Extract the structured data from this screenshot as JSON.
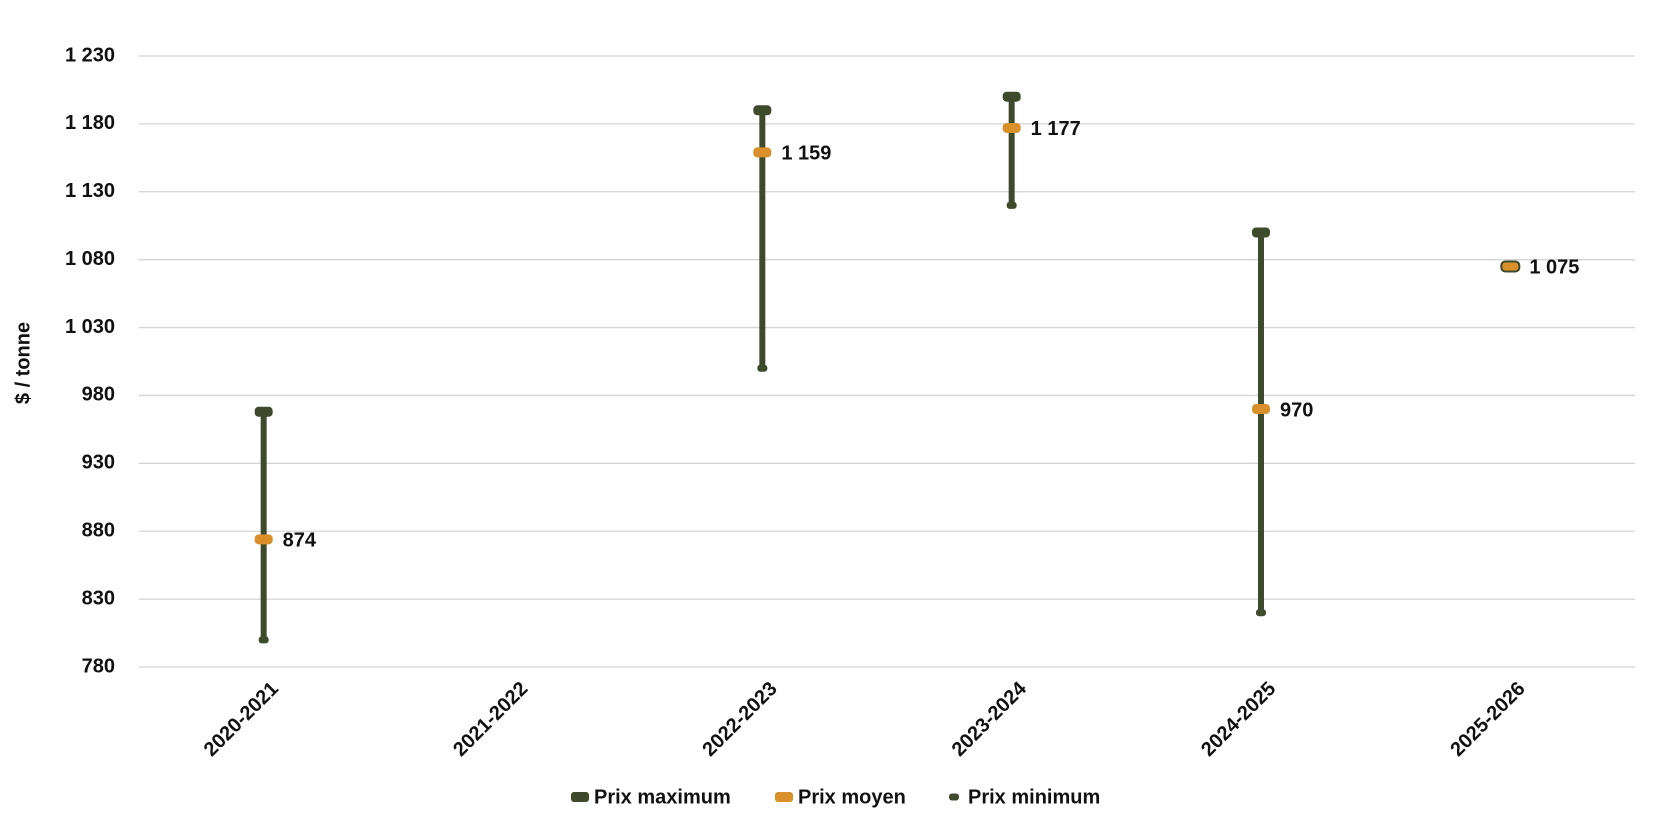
{
  "chart_data": {
    "type": "range",
    "y_label": "$ / tonne",
    "categories": [
      "2020-2021",
      "2021-2022",
      "2022-2023",
      "2023-2024",
      "2024-2025",
      "2025-2026"
    ],
    "series": [
      {
        "name": "Prix maximum",
        "color": "#3d4a2c",
        "values": [
          968,
          null,
          1190,
          1200,
          1100,
          1075
        ]
      },
      {
        "name": "Prix moyen",
        "color": "#d9902b",
        "values": [
          874,
          null,
          1159,
          1177,
          970,
          1075
        ],
        "value_labels": [
          "874",
          null,
          "1 159",
          "1 177",
          "970",
          "1 075"
        ]
      },
      {
        "name": "Prix minimum",
        "color": "#3d4a2c",
        "values": [
          800,
          null,
          1000,
          1120,
          820,
          1075
        ]
      }
    ],
    "ylim": [
      780,
      1230
    ],
    "yticks": [
      780,
      830,
      880,
      930,
      980,
      {
        "value": 1030,
        "label": "1 030"
      },
      {
        "value": 1080,
        "label": "1 080"
      },
      {
        "value": 1130,
        "label": "1 130"
      },
      {
        "value": 1180,
        "label": "1 180"
      },
      {
        "value": 1230,
        "label": "1 230"
      }
    ],
    "grid": true
  }
}
